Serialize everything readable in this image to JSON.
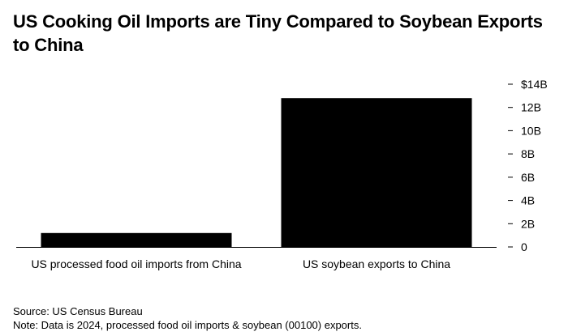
{
  "chart_data": {
    "type": "bar",
    "title": "US Cooking Oil Imports are Tiny Compared to Soybean Exports to China",
    "categories": [
      "US processed food oil imports from China",
      "US soybean exports to China"
    ],
    "values": [
      1.2,
      12.8
    ],
    "unit": "B USD",
    "ylim": [
      0,
      14
    ],
    "y_ticks": [
      "0",
      "2B",
      "4B",
      "6B",
      "8B",
      "10B",
      "12B",
      "$14B"
    ],
    "y_tick_values": [
      0,
      2,
      4,
      6,
      8,
      10,
      12,
      14
    ],
    "y_axis_side": "right",
    "grid": false,
    "bar_color": "#000000",
    "xlabel": "",
    "ylabel": ""
  },
  "footer": {
    "source": "Source: US Census Bureau",
    "note": "Note: Data is 2024, processed food oil imports & soybean (00100) exports."
  }
}
